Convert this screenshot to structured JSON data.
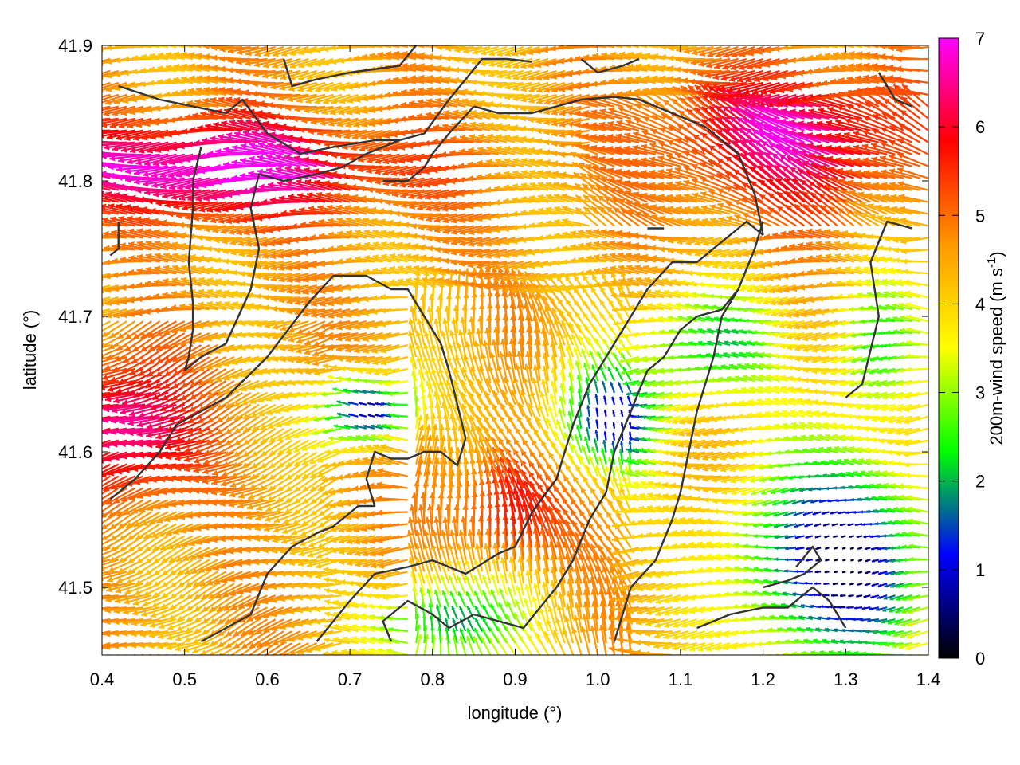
{
  "chart_data": {
    "type": "vector-field",
    "title": "",
    "xlabel": "longitude (°)",
    "ylabel": "latitude (°)",
    "xlim": [
      0.4,
      1.4
    ],
    "ylim": [
      41.45,
      41.9
    ],
    "xticks": [
      "0.4",
      "0.5",
      "0.6",
      "0.7",
      "0.8",
      "0.9",
      "1.0",
      "1.1",
      "1.2",
      "1.3",
      "1.4"
    ],
    "yticks": [
      "41.5",
      "41.6",
      "41.7",
      "41.8",
      "41.9"
    ],
    "grid": false,
    "colorbar": {
      "label": "200m-wind speed (m s",
      "label_sup": "-1",
      "label_end": ")",
      "range": [
        0,
        7
      ],
      "ticks": [
        "0",
        "1",
        "2",
        "3",
        "4",
        "5",
        "6",
        "7"
      ],
      "colors": [
        "#000000",
        "#0000ff",
        "#00ff00",
        "#ffff00",
        "#ff9900",
        "#ff0000",
        "#ff00ff"
      ]
    },
    "coastlines": [
      [
        [
          0.42,
          41.87
        ],
        [
          0.47,
          41.86
        ],
        [
          0.51,
          41.855
        ],
        [
          0.55,
          41.85
        ],
        [
          0.57,
          41.86
        ],
        [
          0.6,
          41.835
        ],
        [
          0.64,
          41.82
        ],
        [
          0.68,
          41.825
        ],
        [
          0.73,
          41.83
        ],
        [
          0.76,
          41.83
        ],
        [
          0.79,
          41.835
        ],
        [
          0.82,
          41.86
        ]
      ],
      [
        [
          0.82,
          41.86
        ],
        [
          0.84,
          41.875
        ],
        [
          0.86,
          41.89
        ],
        [
          0.89,
          41.89
        ],
        [
          0.92,
          41.888
        ]
      ],
      [
        [
          0.52,
          41.825
        ],
        [
          0.51,
          41.8
        ],
        [
          0.51,
          41.78
        ],
        [
          0.505,
          41.74
        ],
        [
          0.51,
          41.71
        ],
        [
          0.51,
          41.69
        ],
        [
          0.505,
          41.67
        ],
        [
          0.5,
          41.66
        ]
      ],
      [
        [
          0.5,
          41.66
        ],
        [
          0.52,
          41.67
        ],
        [
          0.55,
          41.68
        ],
        [
          0.58,
          41.72
        ],
        [
          0.59,
          41.75
        ],
        [
          0.58,
          41.78
        ],
        [
          0.59,
          41.805
        ],
        [
          0.62,
          41.8
        ],
        [
          0.66,
          41.805
        ],
        [
          0.69,
          41.81
        ],
        [
          0.72,
          41.82
        ],
        [
          0.76,
          41.83
        ]
      ],
      [
        [
          0.41,
          41.565
        ],
        [
          0.44,
          41.58
        ],
        [
          0.47,
          41.6
        ],
        [
          0.49,
          41.62
        ],
        [
          0.55,
          41.64
        ],
        [
          0.6,
          41.67
        ],
        [
          0.65,
          41.71
        ],
        [
          0.68,
          41.73
        ],
        [
          0.72,
          41.73
        ],
        [
          0.75,
          41.72
        ],
        [
          0.77,
          41.72
        ],
        [
          0.79,
          41.7
        ],
        [
          0.81,
          41.68
        ],
        [
          0.82,
          41.66
        ],
        [
          0.83,
          41.635
        ],
        [
          0.84,
          41.61
        ],
        [
          0.83,
          41.59
        ],
        [
          0.81,
          41.6
        ],
        [
          0.79,
          41.6
        ],
        [
          0.77,
          41.595
        ],
        [
          0.75,
          41.595
        ],
        [
          0.73,
          41.6
        ],
        [
          0.72,
          41.58
        ],
        [
          0.73,
          41.56
        ],
        [
          0.71,
          41.56
        ],
        [
          0.68,
          41.545
        ],
        [
          0.66,
          41.54
        ],
        [
          0.63,
          41.53
        ],
        [
          0.6,
          41.51
        ],
        [
          0.58,
          41.48
        ],
        [
          0.55,
          41.47
        ],
        [
          0.52,
          41.46
        ]
      ],
      [
        [
          0.66,
          41.46
        ],
        [
          0.7,
          41.49
        ],
        [
          0.73,
          41.51
        ],
        [
          0.77,
          41.515
        ],
        [
          0.8,
          41.52
        ],
        [
          0.84,
          41.51
        ],
        [
          0.88,
          41.525
        ],
        [
          0.9,
          41.53
        ],
        [
          0.92,
          41.555
        ],
        [
          0.95,
          41.58
        ],
        [
          0.97,
          41.62
        ],
        [
          0.99,
          41.65
        ],
        [
          1.01,
          41.67
        ],
        [
          1.03,
          41.69
        ],
        [
          1.06,
          41.72
        ],
        [
          1.09,
          41.74
        ],
        [
          1.12,
          41.74
        ],
        [
          1.15,
          41.755
        ],
        [
          1.18,
          41.77
        ],
        [
          1.2,
          41.76
        ]
      ],
      [
        [
          0.75,
          41.46
        ],
        [
          0.74,
          41.475
        ],
        [
          0.77,
          41.49
        ],
        [
          0.8,
          41.48
        ],
        [
          0.82,
          41.47
        ],
        [
          0.85,
          41.48
        ],
        [
          0.88,
          41.475
        ],
        [
          0.91,
          41.47
        ],
        [
          0.93,
          41.485
        ],
        [
          0.95,
          41.5
        ],
        [
          0.97,
          41.52
        ],
        [
          0.99,
          41.55
        ],
        [
          1.01,
          41.57
        ],
        [
          1.02,
          41.6
        ],
        [
          1.04,
          41.63
        ],
        [
          1.06,
          41.66
        ],
        [
          1.08,
          41.67
        ],
        [
          1.1,
          41.69
        ],
        [
          1.12,
          41.7
        ],
        [
          1.15,
          41.705
        ],
        [
          1.17,
          41.72
        ],
        [
          1.19,
          41.75
        ],
        [
          1.2,
          41.77
        ]
      ],
      [
        [
          1.02,
          41.46
        ],
        [
          1.04,
          41.5
        ],
        [
          1.07,
          41.52
        ],
        [
          1.09,
          41.55
        ],
        [
          1.1,
          41.57
        ],
        [
          1.11,
          41.6
        ],
        [
          1.12,
          41.63
        ],
        [
          1.14,
          41.67
        ],
        [
          1.15,
          41.7
        ],
        [
          1.17,
          41.72
        ]
      ],
      [
        [
          1.2,
          41.76
        ],
        [
          1.19,
          41.79
        ],
        [
          1.17,
          41.82
        ],
        [
          1.13,
          41.84
        ],
        [
          1.09,
          41.85
        ],
        [
          1.05,
          41.86
        ],
        [
          1.02,
          41.862
        ],
        [
          0.98,
          41.86
        ],
        [
          0.95,
          41.855
        ],
        [
          0.92,
          41.85
        ],
        [
          0.88,
          41.85
        ],
        [
          0.85,
          41.855
        ]
      ],
      [
        [
          0.85,
          41.855
        ],
        [
          0.82,
          41.835
        ],
        [
          0.8,
          41.82
        ],
        [
          0.79,
          41.81
        ],
        [
          0.77,
          41.8
        ],
        [
          0.74,
          41.8
        ]
      ],
      [
        [
          1.12,
          41.47
        ],
        [
          1.16,
          41.48
        ],
        [
          1.2,
          41.485
        ],
        [
          1.23,
          41.485
        ],
        [
          1.26,
          41.5
        ],
        [
          1.28,
          41.49
        ],
        [
          1.3,
          41.47
        ]
      ],
      [
        [
          1.2,
          41.5
        ],
        [
          1.23,
          41.505
        ],
        [
          1.25,
          41.51
        ],
        [
          1.27,
          41.52
        ],
        [
          1.26,
          41.53
        ],
        [
          1.24,
          41.515
        ]
      ],
      [
        [
          1.3,
          41.64
        ],
        [
          1.32,
          41.65
        ],
        [
          1.34,
          41.7
        ],
        [
          1.33,
          41.74
        ],
        [
          1.35,
          41.77
        ],
        [
          1.38,
          41.765
        ]
      ],
      [
        [
          1.34,
          41.88
        ],
        [
          1.36,
          41.86
        ],
        [
          1.38,
          41.855
        ]
      ],
      [
        [
          0.78,
          41.9
        ],
        [
          0.76,
          41.885
        ],
        [
          0.7,
          41.88
        ],
        [
          0.66,
          41.875
        ],
        [
          0.63,
          41.87
        ],
        [
          0.62,
          41.89
        ]
      ],
      [
        [
          0.98,
          41.89
        ],
        [
          1.0,
          41.88
        ],
        [
          1.03,
          41.885
        ],
        [
          1.05,
          41.89
        ]
      ],
      [
        [
          0.42,
          41.77
        ],
        [
          0.42,
          41.75
        ],
        [
          0.41,
          41.745
        ]
      ],
      [
        [
          1.06,
          41.765
        ],
        [
          1.08,
          41.765
        ]
      ]
    ]
  }
}
